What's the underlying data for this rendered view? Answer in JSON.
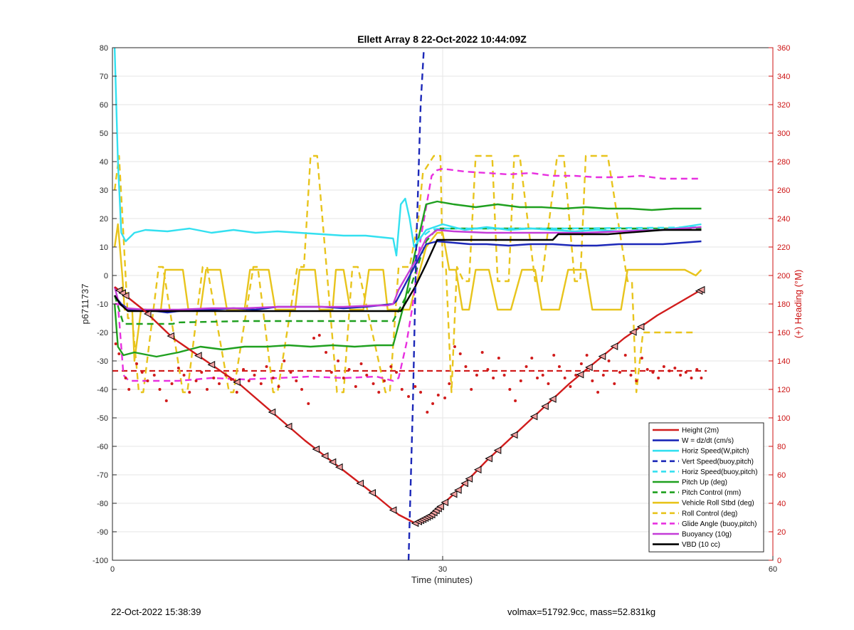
{
  "chart_data": {
    "type": "line",
    "title": "Ellett Array 8 22-Oct-2022 10:44:09Z",
    "xlabel": "Time (minutes)",
    "ylabel_left": "p6711737",
    "ylabel_right": "(+) Heading (°M)",
    "xlim": [
      0,
      60
    ],
    "ylim_left": [
      -100,
      80
    ],
    "ylim_right": [
      0,
      360
    ],
    "xticks": [
      0,
      30,
      60
    ],
    "yticks_left": [
      80,
      70,
      60,
      50,
      40,
      30,
      20,
      10,
      0,
      -10,
      -20,
      -30,
      -40,
      -50,
      -60,
      -70,
      -80,
      -90,
      -100
    ],
    "yticks_right": [
      360,
      340,
      320,
      300,
      280,
      260,
      240,
      220,
      200,
      180,
      160,
      140,
      120,
      100,
      80,
      60,
      40,
      20,
      0
    ],
    "grid": true,
    "legend_position": "bottom-right",
    "colors": {
      "height": "#d11c1c",
      "w": "#1c28b8",
      "horiz": "#33e0f0",
      "pitch": "#1fa01f",
      "roll": "#e8c41c",
      "glide": "#e830e0",
      "buoy": "#c43cd8",
      "vbd": "#000000",
      "heading": "#d11c1c",
      "right_axis": "#cc1111"
    },
    "series": [
      {
        "key": "height",
        "name": "Height (2m)",
        "style": "solid",
        "color": "#d11c1c",
        "x": [
          0.2,
          2.8,
          5.5,
          8.5,
          11.5,
          14.5,
          17.5,
          20.5,
          23.5,
          26.0,
          27.5,
          29.0,
          31.5,
          34.0,
          36.5,
          39.0,
          41.5,
          44.0,
          46.5,
          49.5,
          53.5
        ],
        "y": [
          -4,
          -12,
          -22,
          -30,
          -38,
          -48,
          -58,
          -67,
          -76,
          -84,
          -87,
          -84,
          -75,
          -65,
          -56,
          -47,
          -38,
          -30,
          -22,
          -14,
          -5
        ]
      },
      {
        "key": "w",
        "name": "W = dz/dt (cm/s)",
        "style": "solid",
        "color": "#1c28b8",
        "x": [
          0.2,
          0.8,
          1.5,
          3,
          5,
          7,
          9,
          11,
          13,
          15,
          17,
          19,
          21,
          23,
          25.5,
          25.8,
          28.5,
          29.5,
          31,
          32.5,
          34,
          36,
          38,
          40,
          42,
          44,
          46,
          48,
          50,
          53.5
        ],
        "y": [
          -7,
          -10,
          -12,
          -12,
          -13,
          -12,
          -12,
          -11.5,
          -12,
          -11,
          -11,
          -11,
          -11.5,
          -11,
          -10,
          -9,
          11,
          12,
          11.5,
          11,
          11,
          10.5,
          11,
          11,
          10.5,
          10.5,
          11,
          11,
          11,
          12
        ]
      },
      {
        "key": "horiz",
        "name": "Horiz Speed(W,pitch)",
        "style": "solid",
        "color": "#33e0f0",
        "x": [
          0.2,
          0.5,
          0.8,
          1.2,
          2,
          3,
          5,
          7,
          9,
          11,
          13,
          15,
          17,
          19,
          21,
          23,
          25.5,
          25.8,
          26.2,
          26.6,
          27.0,
          27.4,
          28.5,
          30,
          32,
          34,
          36,
          38,
          40,
          42,
          44,
          46,
          48,
          50,
          53.5
        ],
        "y": [
          80,
          40,
          15,
          12,
          15,
          16,
          15.5,
          16.5,
          15,
          16,
          15,
          15.5,
          15,
          14.5,
          14,
          14,
          13,
          7,
          25,
          27,
          20,
          10,
          16,
          18,
          16,
          17,
          16,
          16.5,
          16,
          15.5,
          16,
          15.5,
          16,
          16,
          18
        ]
      },
      {
        "key": "vert_buoy",
        "name": "Vert Speed(buoy,pitch)",
        "style": "dashed",
        "color": "#1c28b8",
        "x": [
          26.9,
          27.3,
          27.6,
          28.0,
          28.3
        ],
        "y": [
          -100,
          -45,
          10,
          60,
          80
        ]
      },
      {
        "key": "horiz_buoy",
        "name": "Horiz Speed(buoy,pitch)",
        "style": "dashed",
        "color": "#33e0f0",
        "x": [
          27.6,
          29,
          30,
          40,
          50,
          53.5
        ],
        "y": [
          12,
          16.2,
          16.5,
          16.5,
          16.8,
          17
        ]
      },
      {
        "key": "pitch",
        "name": "Pitch Up (deg)",
        "style": "solid",
        "color": "#1fa01f",
        "x": [
          0.2,
          0.5,
          1,
          2,
          4,
          6,
          8,
          10,
          12,
          14,
          16,
          18,
          20,
          22,
          24,
          25.5,
          26.5,
          27.5,
          28.5,
          29.5,
          31,
          33,
          35,
          37,
          39,
          41,
          43,
          45,
          47,
          49,
          51,
          53.5
        ],
        "y": [
          -10,
          -25,
          -28,
          -27,
          -28.5,
          -27,
          -25,
          -26,
          -25,
          -25,
          -24.5,
          -25,
          -24.5,
          -25,
          -24.5,
          -24.5,
          -10,
          8,
          25,
          26,
          25,
          24,
          25,
          24,
          24,
          23.5,
          24,
          23.5,
          23.5,
          23,
          23.5,
          23.5
        ]
      },
      {
        "key": "pitch_ctrl",
        "name": "Pitch Control (mm)",
        "style": "dashed",
        "color": "#1fa01f",
        "x": [
          0.2,
          1.0,
          5.5,
          5.8,
          12,
          25.5,
          27,
          28.5,
          29.5,
          40,
          53.5
        ],
        "y": [
          -7,
          -17,
          -17,
          -16.5,
          -16,
          -16,
          -5,
          12,
          16.5,
          16.5,
          16.5
        ]
      },
      {
        "key": "roll",
        "name": "Vehicle Roll Stbd (deg)",
        "style": "solid",
        "color": "#e8c41c",
        "x": [
          0.2,
          0.5,
          0.9,
          1.1,
          1.8,
          2.0,
          2.6,
          4.4,
          4.8,
          6.4,
          6.9,
          8.0,
          8.5,
          9.8,
          10.4,
          12.0,
          12.5,
          14.2,
          14.8,
          16.6,
          17.0,
          18.4,
          18.8,
          20.0,
          20.3,
          21.0,
          21.6,
          22.8,
          23.3,
          24.6,
          25.0,
          27.0,
          27.8,
          28.5,
          29.5,
          30.0,
          30.6,
          31.2,
          31.8,
          32.4,
          33.0,
          34.2,
          35.0,
          36.2,
          37.2,
          38.4,
          39.0,
          40.6,
          41.4,
          43.0,
          43.6,
          46.2,
          46.8,
          47.2,
          48.2,
          51.0,
          52.0,
          53.0,
          53.5
        ],
        "y": [
          10,
          18,
          0,
          -12,
          -12,
          -30,
          -12,
          -12,
          2,
          2,
          -12,
          -12,
          2,
          2,
          -12,
          -12,
          2,
          2,
          -12,
          -12,
          2,
          2,
          -12,
          -12,
          2,
          2,
          -12,
          -12,
          2,
          2,
          -12,
          -12,
          0,
          10,
          15,
          15,
          2,
          2,
          -12,
          -12,
          2,
          2,
          -12,
          -12,
          2,
          2,
          -12,
          -12,
          2,
          2,
          -12,
          -12,
          2,
          2,
          2,
          2,
          2,
          0,
          2
        ]
      },
      {
        "key": "roll_ctrl",
        "name": "Roll Control (deg)",
        "style": "dashed",
        "color": "#e8c41c",
        "x": [
          0.2,
          0.6,
          1.0,
          1.4,
          1.8,
          2.4,
          2.8,
          4.2,
          4.6,
          6.4,
          6.8,
          8.2,
          8.6,
          10.6,
          11.0,
          12.8,
          13.2,
          14.6,
          15.0,
          16.8,
          17.4,
          18.0,
          18.6,
          20.4,
          21.0,
          21.8,
          22.3,
          24.8,
          25.2,
          26.0,
          27.0,
          27.8,
          28.2,
          29.2,
          29.8,
          30.0,
          30.3,
          30.8,
          31.3,
          31.9,
          32.4,
          33.0,
          34.5,
          35.0,
          36.0,
          36.5,
          37.0,
          38.4,
          39.0,
          40.4,
          41.0,
          42.0,
          42.5,
          43.0,
          45.0,
          46.8,
          47.2,
          47.6,
          48.2,
          53.0
        ],
        "y": [
          30,
          42,
          14,
          -15,
          -15,
          -41,
          -41,
          3,
          3,
          -41,
          -41,
          3,
          3,
          -41,
          -41,
          3,
          3,
          -41,
          -41,
          3,
          3,
          42,
          42,
          -41,
          -41,
          3,
          3,
          -41,
          -41,
          3,
          3,
          20,
          36,
          42,
          42,
          3,
          3,
          -41,
          3,
          -2,
          -2,
          42,
          42,
          -2,
          -2,
          42,
          42,
          -2,
          -2,
          42,
          42,
          -2,
          -2,
          42,
          42,
          -2,
          -2,
          -41,
          -20,
          -20
        ]
      },
      {
        "key": "glide",
        "name": "Glide Angle (buoy,pitch)",
        "style": "dashed",
        "color": "#e830e0",
        "x": [
          0.2,
          0.5,
          1.0,
          1.5,
          3,
          6,
          9,
          12,
          15,
          18,
          21,
          24,
          25.5,
          26.0,
          26.7,
          27.3,
          28.0,
          29.0,
          29.5,
          30,
          32,
          34,
          36,
          38,
          40,
          42,
          44,
          46,
          48,
          50,
          53.5
        ],
        "y": [
          -10,
          -10,
          -35,
          -37,
          -37,
          -37,
          -36,
          -36.5,
          -36,
          -35.5,
          -36,
          -35.5,
          -37,
          -36,
          -24,
          -10,
          13,
          35,
          37,
          37.5,
          36.5,
          36,
          35.5,
          36,
          35,
          35,
          34.5,
          34.5,
          35,
          34,
          34
        ]
      },
      {
        "key": "buoy",
        "name": "Buoyancy (10g)",
        "style": "solid",
        "color": "#c43cd8",
        "x": [
          0.2,
          0.6,
          1.2,
          3,
          6,
          9,
          12,
          15,
          18,
          21,
          24,
          25.0,
          25.5,
          26.0,
          27.5,
          28.5,
          29.5,
          31,
          34,
          37,
          40,
          43,
          46,
          50,
          53.5
        ],
        "y": [
          -4,
          -10,
          -11.5,
          -12,
          -12,
          -11.5,
          -11.5,
          -11,
          -11,
          -11,
          -10.5,
          -10.5,
          -10,
          -5,
          5,
          13,
          16,
          15.5,
          15,
          15,
          15,
          15,
          15.5,
          16,
          17
        ]
      },
      {
        "key": "vbd",
        "name": "VBD (10 cc)",
        "style": "solid",
        "color": "#000000",
        "x": [
          0.2,
          0.7,
          1.4,
          5,
          10,
          15,
          20,
          25.5,
          26.2,
          27.5,
          28.5,
          29.5,
          30.2,
          35,
          40,
          40.5,
          45,
          50,
          53.5
        ],
        "y": [
          -7,
          -10,
          -12.5,
          -12.5,
          -12.5,
          -12.5,
          -12.5,
          -12.5,
          -12.5,
          -4,
          4,
          12.5,
          12.5,
          12.5,
          12.5,
          14.5,
          14.5,
          16,
          16
        ]
      }
    ],
    "heading_mean_deg": 133,
    "heading_points": {
      "x": [
        0.3,
        0.6,
        1.2,
        1.5,
        2.2,
        2.7,
        3.2,
        3.8,
        4.3,
        4.9,
        5.4,
        6.0,
        6.5,
        7.0,
        7.6,
        8.1,
        8.6,
        9.2,
        9.7,
        10.3,
        10.8,
        11.3,
        11.9,
        12.4,
        12.9,
        13.5,
        14.0,
        14.6,
        15.1,
        15.6,
        16.2,
        16.7,
        17.2,
        17.8,
        18.3,
        18.8,
        19.4,
        19.9,
        20.5,
        21.0,
        21.5,
        22.1,
        22.6,
        23.1,
        23.7,
        24.2,
        24.7,
        25.3,
        25.8,
        26.3,
        26.9,
        27.5,
        28.0,
        28.6,
        29.1,
        29.6,
        30.2,
        30.6,
        31.1,
        31.6,
        32.1,
        32.6,
        33.1,
        33.6,
        34.1,
        34.6,
        35.1,
        35.6,
        36.1,
        36.6,
        37.1,
        37.6,
        38.1,
        38.6,
        39.1,
        39.6,
        40.1,
        40.6,
        41.1,
        41.6,
        42.1,
        42.6,
        43.1,
        43.6,
        44.1,
        44.6,
        45.1,
        45.6,
        46.1,
        46.6,
        47.1,
        47.6,
        48.1,
        48.6,
        49.1,
        49.6,
        50.1,
        50.6,
        51.1,
        51.6,
        52.1,
        52.6,
        53.1,
        53.5
      ],
      "y": [
        152,
        145,
        128,
        120,
        138,
        132,
        126,
        130,
        120,
        112,
        124,
        135,
        130,
        118,
        126,
        132,
        120,
        128,
        124,
        130,
        127,
        118,
        134,
        126,
        130,
        124,
        136,
        128,
        122,
        140,
        132,
        126,
        120,
        110,
        156,
        158,
        146,
        132,
        140,
        128,
        134,
        122,
        138,
        130,
        124,
        118,
        126,
        136,
        132,
        120,
        115,
        122,
        118,
        104,
        110,
        116,
        114,
        124,
        150,
        145,
        136,
        120,
        130,
        146,
        134,
        128,
        142,
        130,
        120,
        112,
        126,
        136,
        142,
        128,
        130,
        124,
        144,
        136,
        128,
        122,
        130,
        138,
        144,
        126,
        118,
        130,
        140,
        124,
        132,
        144,
        130,
        126,
        142,
        134,
        132,
        128,
        136,
        133,
        135,
        130,
        132,
        128,
        134,
        128
      ]
    },
    "height_markers_x": [
      0.6,
      0.9,
      1.2,
      3.2,
      5.3,
      7.8,
      9.0,
      11.3,
      14.5,
      16.0,
      18.5,
      19.3,
      20.0,
      20.6,
      22.5,
      23.6,
      25.5,
      27.5,
      27.8,
      28.0,
      28.2,
      28.4,
      28.6,
      28.8,
      29.0,
      29.2,
      29.4,
      29.6,
      29.8,
      30.2,
      31.0,
      31.4,
      32.0,
      32.4,
      33.2,
      34.2,
      35.0,
      36.5,
      38.3,
      39.3,
      40.0,
      42.5,
      43.3,
      44.5,
      45.6,
      47.3,
      48.0,
      53.3,
      53.5
    ],
    "legend": [
      {
        "label": "Height (2m)",
        "color": "#d11c1c",
        "style": "solid"
      },
      {
        "label": "W = dz/dt (cm/s)",
        "color": "#1c28b8",
        "style": "solid"
      },
      {
        "label": "Horiz Speed(W,pitch)",
        "color": "#33e0f0",
        "style": "solid"
      },
      {
        "label": "Vert Speed(buoy,pitch)",
        "color": "#1c28b8",
        "style": "dashed"
      },
      {
        "label": "Horiz Speed(buoy,pitch)",
        "color": "#33e0f0",
        "style": "dashed"
      },
      {
        "label": "Pitch Up (deg)",
        "color": "#1fa01f",
        "style": "solid"
      },
      {
        "label": "Pitch Control (mm)",
        "color": "#1fa01f",
        "style": "dashed"
      },
      {
        "label": "Vehicle Roll Stbd (deg)",
        "color": "#e8c41c",
        "style": "solid"
      },
      {
        "label": "Roll Control (deg)",
        "color": "#e8c41c",
        "style": "dashed"
      },
      {
        "label": "Glide Angle (buoy,pitch)",
        "color": "#e830e0",
        "style": "dashed"
      },
      {
        "label": "Buoyancy (10g)",
        "color": "#c43cd8",
        "style": "solid"
      },
      {
        "label": "VBD (10 cc)",
        "color": "#000000",
        "style": "solid"
      }
    ]
  },
  "footer": {
    "left": "22-Oct-2022 15:38:39",
    "right": "volmax=51792.9cc, mass=52.831kg"
  }
}
